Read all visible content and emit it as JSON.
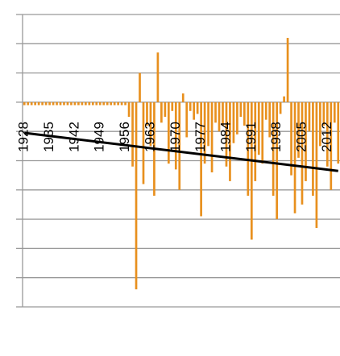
{
  "chart_data": {
    "type": "bar",
    "color": "#e8901e",
    "x": [
      1928,
      1929,
      1930,
      1931,
      1932,
      1933,
      1934,
      1935,
      1936,
      1937,
      1938,
      1939,
      1940,
      1941,
      1942,
      1943,
      1944,
      1945,
      1946,
      1947,
      1948,
      1949,
      1950,
      1951,
      1952,
      1953,
      1954,
      1955,
      1956,
      1957,
      1958,
      1959,
      1960,
      1961,
      1962,
      1963,
      1964,
      1965,
      1966,
      1967,
      1968,
      1969,
      1970,
      1971,
      1972,
      1973,
      1974,
      1975,
      1976,
      1977,
      1978,
      1979,
      1980,
      1981,
      1982,
      1983,
      1984,
      1985,
      1986,
      1987,
      1988,
      1989,
      1990,
      1991,
      1992,
      1993,
      1994,
      1995,
      1996,
      1997,
      1998,
      1999,
      2000,
      2001,
      2002,
      2003,
      2004,
      2005,
      2006,
      2007,
      2008,
      2009,
      2010,
      2011,
      2012,
      2013,
      2014,
      2015
    ],
    "values": [
      -0.1,
      -0.1,
      -0.1,
      -0.1,
      -0.1,
      -0.1,
      -0.1,
      -0.1,
      -0.1,
      -0.1,
      -0.1,
      -0.1,
      -0.1,
      -0.1,
      -0.1,
      -0.1,
      -0.1,
      -0.1,
      -0.1,
      -0.1,
      -0.1,
      -0.1,
      -0.1,
      -0.1,
      -0.1,
      -0.1,
      -0.1,
      -0.1,
      -0.1,
      -0.5,
      -2.2,
      -6.4,
      1.0,
      -2.8,
      -0.8,
      -1.5,
      -3.2,
      1.7,
      -0.7,
      -0.5,
      -2.1,
      -0.3,
      -2.3,
      -3.0,
      0.3,
      -1.2,
      -0.3,
      -0.6,
      -0.4,
      -3.9,
      -2.1,
      -1.5,
      -2.4,
      -0.7,
      -1.0,
      -0.8,
      -2.2,
      -2.7,
      -1.4,
      -1.1,
      -0.5,
      -0.8,
      -3.2,
      -4.7,
      -2.7,
      -1.8,
      -2.1,
      -0.6,
      -1.2,
      -3.2,
      -4.0,
      -0.4,
      0.2,
      2.2,
      -2.5,
      -3.8,
      -1.9,
      -3.5,
      -2.7,
      -1.0,
      -3.2,
      -4.3,
      -1.5,
      -0.8,
      -2.2,
      -3.0,
      -0.7,
      -2.1
    ],
    "trend": {
      "x": [
        1928,
        2015
      ],
      "values": [
        -1.05,
        -2.35
      ],
      "color": "#000000"
    },
    "xlim": [
      1927.5,
      2015.5
    ],
    "xticks": [
      1928,
      1935,
      1942,
      1949,
      1956,
      1963,
      1970,
      1977,
      1984,
      1991,
      1998,
      2005,
      2012
    ],
    "ylim": [
      -7,
      3
    ],
    "yticks": [
      3,
      2,
      1,
      0,
      -1,
      -2,
      -3,
      -4,
      -5,
      -6,
      -7
    ],
    "grid": true
  }
}
